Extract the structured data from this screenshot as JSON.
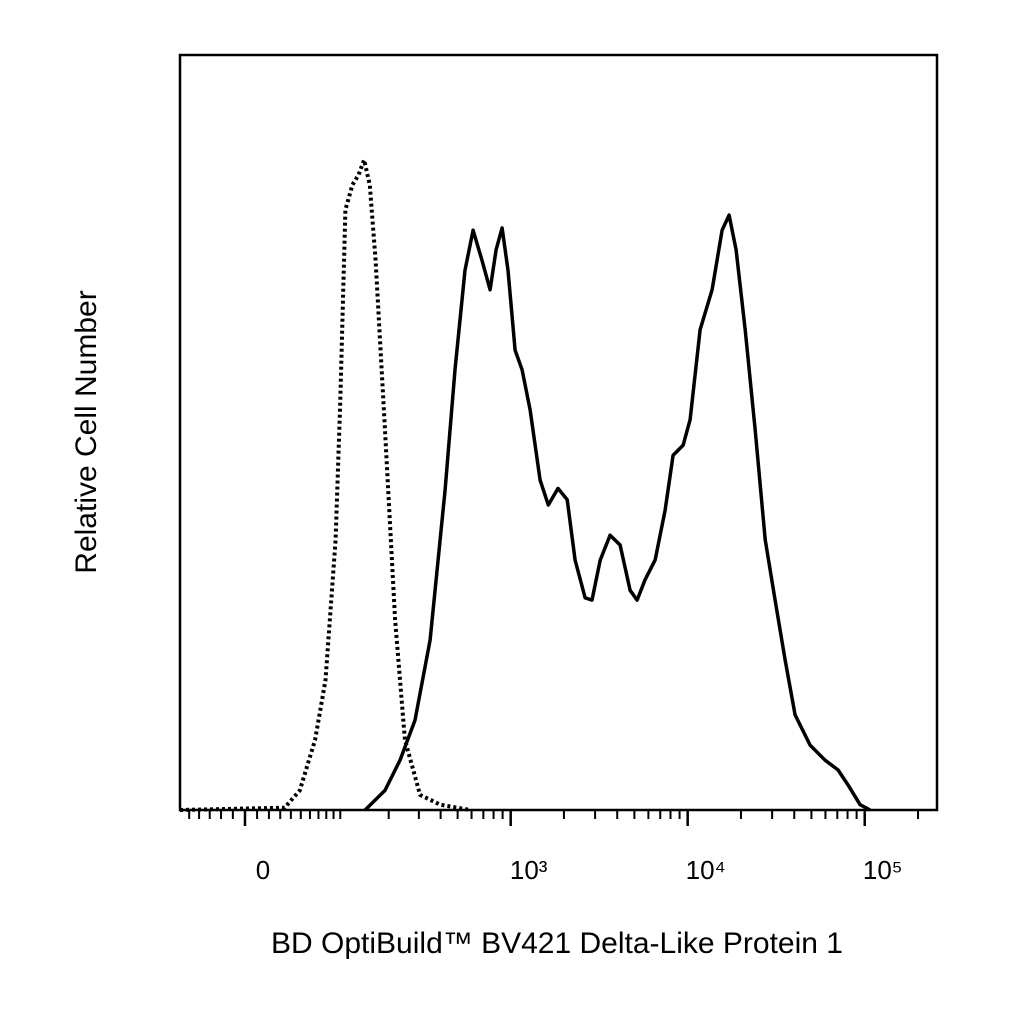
{
  "chart_data": {
    "type": "histogram-overlay",
    "xscale": "biexponential",
    "x_label": "BD OptiBuild™ BV421 Delta-Like Protein 1",
    "y_label": "Relative Cell Number",
    "xlim": [
      -60,
      256000
    ],
    "ylim": [
      0,
      100
    ],
    "xticks": [
      {
        "value": 0,
        "label": "0"
      },
      {
        "value": 1000,
        "label": "10³"
      },
      {
        "value": 10000,
        "label": "10⁴"
      },
      {
        "value": 100000,
        "label": "10⁵"
      }
    ],
    "xminorticks": [
      -50,
      -40,
      -30,
      -20,
      -10,
      10,
      20,
      30,
      40,
      50,
      60,
      70,
      80,
      90,
      100,
      200,
      300,
      400,
      500,
      600,
      700,
      800,
      900,
      2000,
      3000,
      4000,
      5000,
      6000,
      7000,
      8000,
      9000,
      20000,
      30000,
      40000,
      50000,
      60000,
      70000,
      80000,
      90000,
      200000
    ],
    "series": [
      {
        "color": "#000000",
        "line_style": "dotted",
        "x": [
          -60,
          34,
          49,
          66,
          79,
          93,
          100,
          108,
          120,
          131,
          142,
          154,
          167,
          190,
          218,
          249,
          305,
          398,
          588
        ],
        "values": [
          0,
          0.3,
          2.6,
          9.3,
          17.2,
          35.8,
          54.3,
          79.5,
          82.8,
          84.1,
          86.1,
          82.8,
          72.8,
          50.3,
          25.2,
          9.3,
          2.0,
          0.7,
          0
        ]
      },
      {
        "color": "#000000",
        "line_style": "solid",
        "x": [
          144,
          190,
          233,
          285,
          348,
          424,
          483,
          551,
          612,
          688,
          765,
          827,
          894,
          966,
          1059,
          1160,
          1287,
          1466,
          1631,
          1852,
          2086,
          2313,
          2635,
          2882,
          3204,
          3647,
          4152,
          4727,
          5182,
          5751,
          6548,
          7458,
          8273,
          9423,
          10320,
          11755,
          13740,
          15648,
          17140,
          18777,
          21128,
          24054,
          27397,
          31196,
          35525,
          40448,
          49170,
          59724,
          70720,
          80580,
          94168,
          107250
        ],
        "values": [
          0,
          2.6,
          6.6,
          11.9,
          22.5,
          42.4,
          58.3,
          71.5,
          76.8,
          72.8,
          68.9,
          74.2,
          77.1,
          71.5,
          60.9,
          58.3,
          53.0,
          43.7,
          40.4,
          42.6,
          41.1,
          33.1,
          28.1,
          27.8,
          33.1,
          36.4,
          35.1,
          29.1,
          27.8,
          30.5,
          33.1,
          39.7,
          47.0,
          48.3,
          51.7,
          63.6,
          68.9,
          76.8,
          78.8,
          74.2,
          63.6,
          50.3,
          35.8,
          27.8,
          19.9,
          12.6,
          8.6,
          6.6,
          5.3,
          3.3,
          0.7,
          0
        ]
      }
    ]
  }
}
